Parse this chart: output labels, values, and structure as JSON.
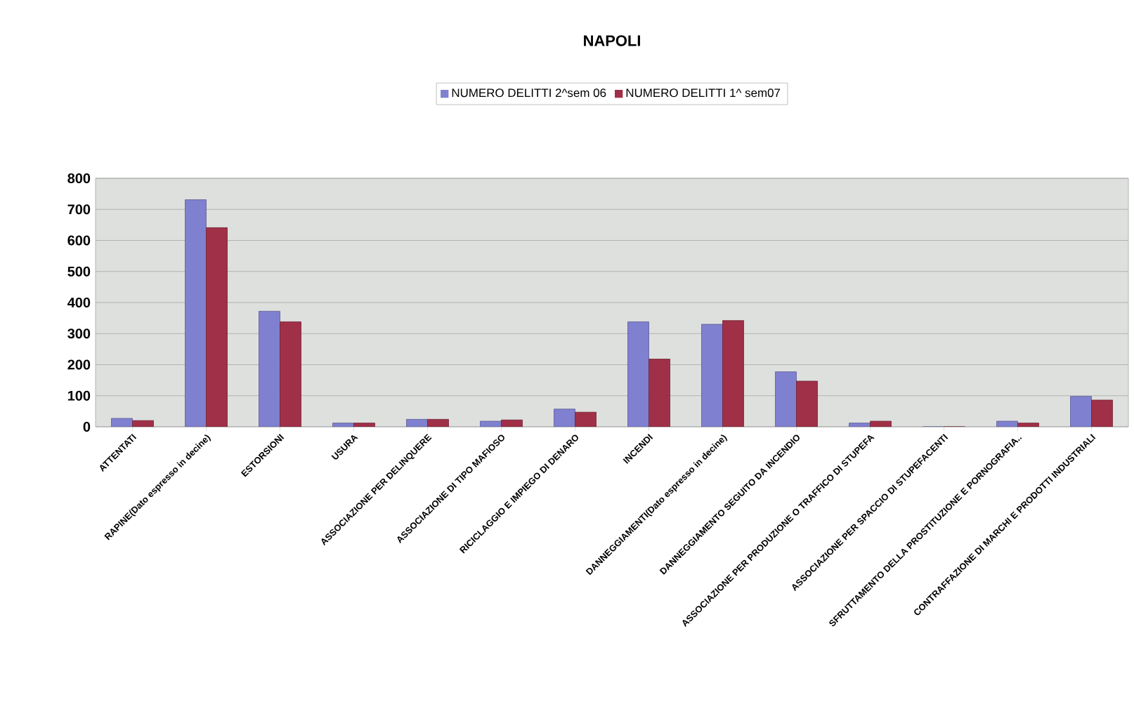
{
  "chart_data": {
    "type": "bar",
    "title": "NAPOLI",
    "categories": [
      "ATTENTATI",
      "RAPINE(Dato espresso in decine)",
      "ESTORSIONI",
      "USURA",
      "ASSOCIAZIONE PER DELINQUERE",
      "ASSOCIAZIONE DI TIPO MAFIOSO",
      "RICICLAGGIO E IMPIEGO DI DENARO",
      "INCENDI",
      "DANNEGGIAMENTI(Dato espresso in decine)",
      "DANNEGGIAMENTO SEGUITO DA INCENDIO",
      "ASSOCIAZIONE PER PRODUZIONE O TRAFFICO DI STUPEFA",
      "ASSOCIAZIONE PER SPACCIO DI STUPEFACENTI",
      "SFRUTTAMENTO DELLA PROSTITUZIONE E PORNOGRAFIA..",
      "CONTRAFFAZIONE DI MARCHI E PRODOTTI INDUSTRIALI"
    ],
    "series": [
      {
        "name": "NUMERO DELITTI 2^sem 06",
        "color": "#8080d0",
        "values": [
          27,
          731,
          372,
          12,
          24,
          18,
          57,
          338,
          330,
          177,
          12,
          0,
          18,
          98
        ]
      },
      {
        "name": "NUMERO DELITTI 1^ sem07",
        "color": "#a03048",
        "values": [
          20,
          641,
          338,
          12,
          24,
          22,
          47,
          218,
          342,
          147,
          18,
          0,
          12,
          86
        ]
      }
    ],
    "ylim": [
      0,
      800
    ],
    "yticks": [
      0,
      100,
      200,
      300,
      400,
      500,
      600,
      700,
      800
    ],
    "grid": "y",
    "legend": "top"
  }
}
